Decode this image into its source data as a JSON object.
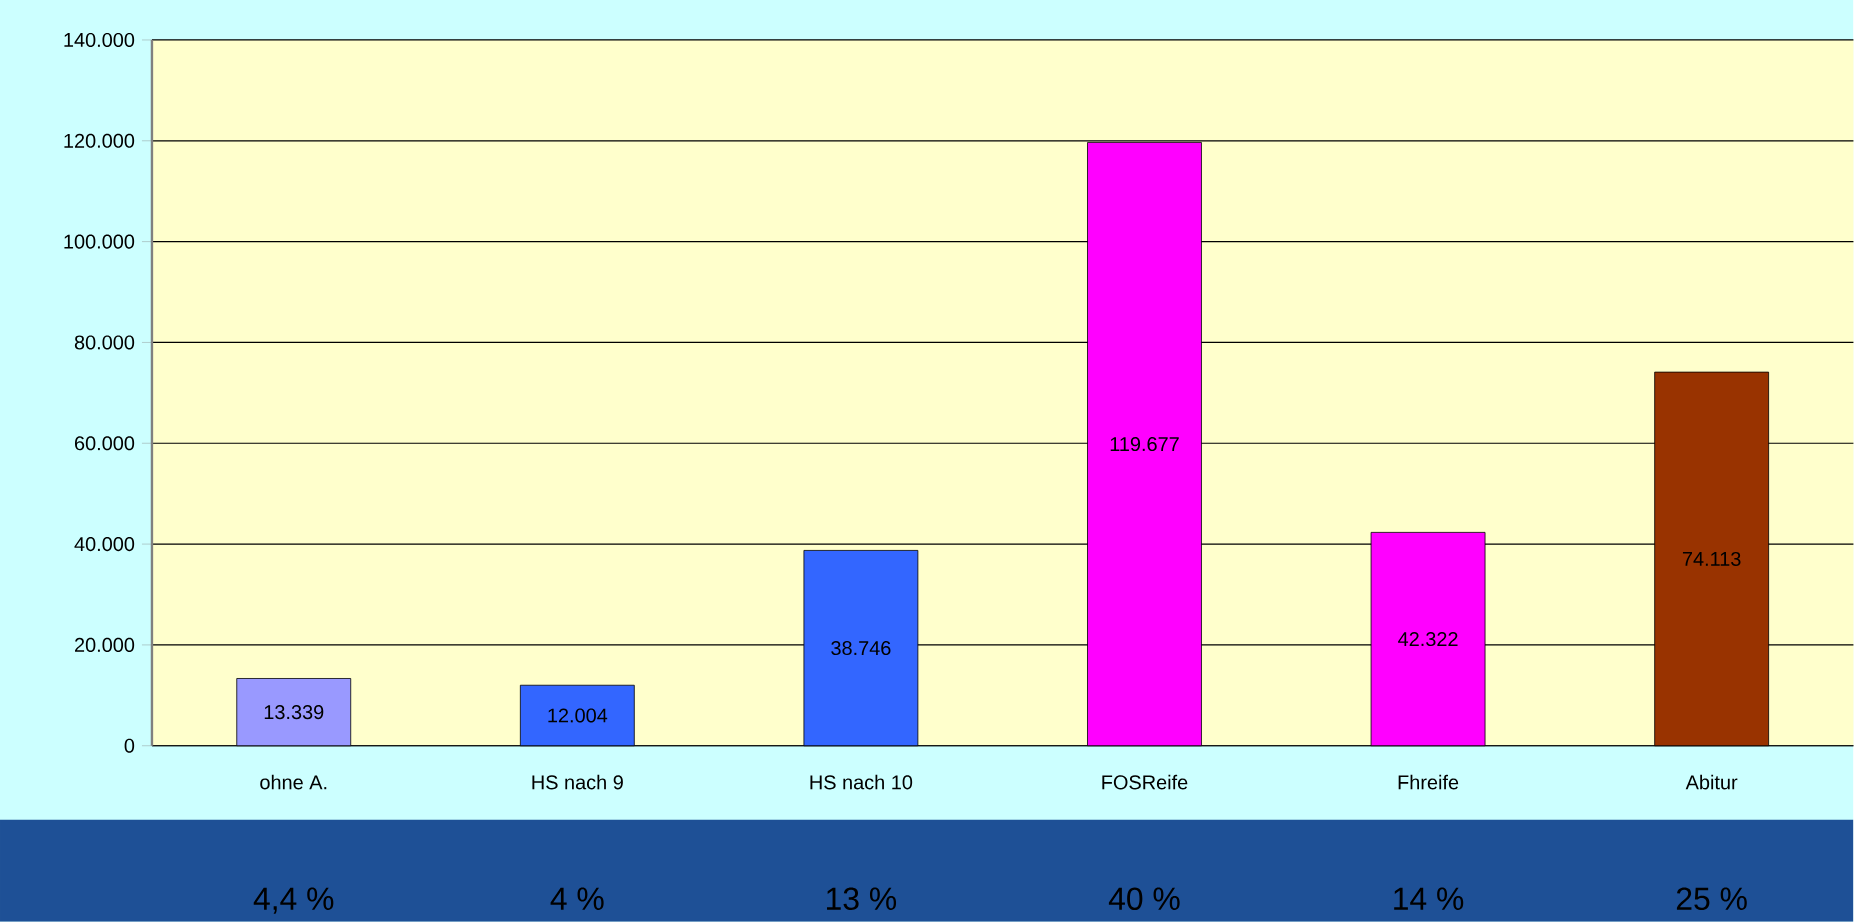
{
  "chart_data": {
    "type": "bar",
    "categories": [
      "ohne A.",
      "HS nach 9",
      "HS nach 10",
      "FOSReife",
      "Fhreife",
      "Abitur"
    ],
    "values": [
      13339,
      12004,
      38746,
      119677,
      42322,
      74113
    ],
    "value_labels": [
      "13.339",
      "12.004",
      "38.746",
      "119.677",
      "42.322",
      "74.113"
    ],
    "colors": [
      "#9999ff",
      "#3366ff",
      "#3366ff",
      "#ff00ff",
      "#ff00ff",
      "#993300"
    ],
    "ylim": [
      0,
      140000
    ],
    "yticks": [
      0,
      {
        "value": 20000,
        "label": "20.000"
      },
      {
        "value": 40000,
        "label": "40.000"
      },
      {
        "value": 60000,
        "label": "60.000"
      },
      {
        "value": 80000,
        "label": "80.000"
      },
      {
        "value": 100000,
        "label": "100.000"
      },
      {
        "value": 120000,
        "label": "120.000"
      },
      {
        "value": 140000,
        "label": "140.000"
      }
    ],
    "grid": "y",
    "annotations": [
      "4,4 %",
      "4 %",
      "13 %",
      "40 %",
      "14 %",
      "25 %"
    ]
  }
}
